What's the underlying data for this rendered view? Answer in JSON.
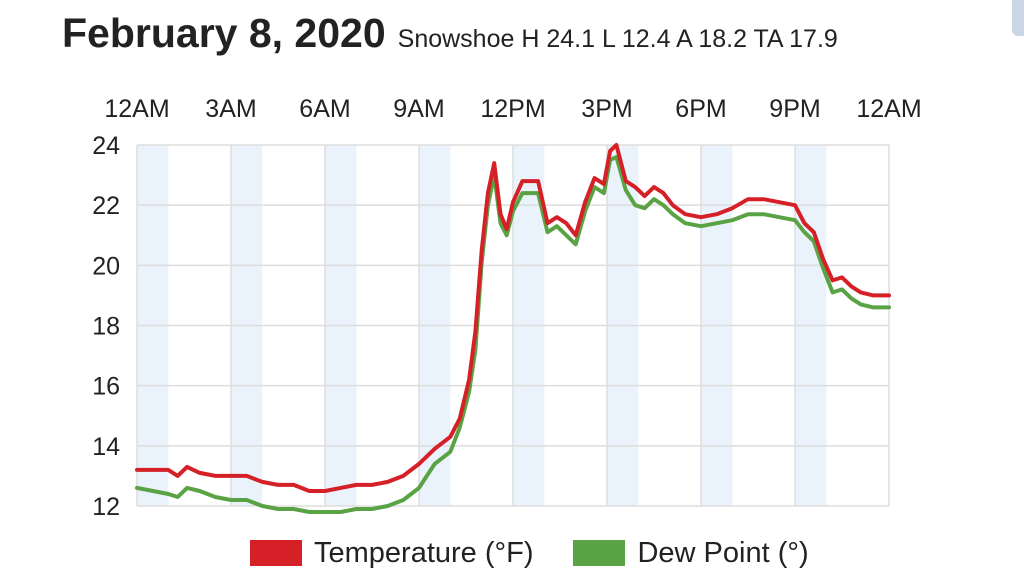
{
  "header": {
    "date": "February 8, 2020",
    "summary": "Snowshoe H 24.1 L 12.4 A 18.2 TA 17.9"
  },
  "colors": {
    "temperature": "#d62027",
    "dew_point": "#5aa345",
    "band": "#eaf3fb",
    "grid": "#dddddd"
  },
  "chart_data": {
    "type": "line",
    "xlabel": "",
    "ylabel": "",
    "x_unit": "hour",
    "xlim": [
      0,
      24
    ],
    "ylim": [
      12,
      24
    ],
    "y_ticks": [
      12,
      14,
      16,
      18,
      20,
      22,
      24
    ],
    "x_tick_labels": [
      "12AM",
      "3AM",
      "6AM",
      "9AM",
      "12PM",
      "3PM",
      "6PM",
      "9PM",
      "12AM"
    ],
    "grid": true,
    "legend_position": "bottom",
    "series": [
      {
        "name": "Temperature (°F)",
        "color": "#d62027",
        "points": [
          [
            0,
            13.2
          ],
          [
            1,
            13.2
          ],
          [
            1.3,
            13.0
          ],
          [
            1.6,
            13.3
          ],
          [
            2,
            13.1
          ],
          [
            2.5,
            13.0
          ],
          [
            3,
            13.0
          ],
          [
            3.5,
            13.0
          ],
          [
            4,
            12.8
          ],
          [
            4.5,
            12.7
          ],
          [
            5,
            12.7
          ],
          [
            5.5,
            12.5
          ],
          [
            6,
            12.5
          ],
          [
            6.5,
            12.6
          ],
          [
            7,
            12.7
          ],
          [
            7.5,
            12.7
          ],
          [
            8,
            12.8
          ],
          [
            8.5,
            13.0
          ],
          [
            9,
            13.4
          ],
          [
            9.5,
            13.9
          ],
          [
            10,
            14.3
          ],
          [
            10.3,
            14.9
          ],
          [
            10.6,
            16.2
          ],
          [
            10.8,
            17.8
          ],
          [
            11.0,
            20.5
          ],
          [
            11.2,
            22.4
          ],
          [
            11.4,
            23.4
          ],
          [
            11.6,
            21.7
          ],
          [
            11.8,
            21.2
          ],
          [
            12.0,
            22.1
          ],
          [
            12.3,
            22.8
          ],
          [
            12.8,
            22.8
          ],
          [
            13.1,
            21.4
          ],
          [
            13.4,
            21.6
          ],
          [
            13.7,
            21.4
          ],
          [
            14.0,
            21.0
          ],
          [
            14.3,
            22.1
          ],
          [
            14.6,
            22.9
          ],
          [
            14.9,
            22.7
          ],
          [
            15.1,
            23.8
          ],
          [
            15.3,
            24.0
          ],
          [
            15.6,
            22.8
          ],
          [
            15.9,
            22.6
          ],
          [
            16.2,
            22.3
          ],
          [
            16.5,
            22.6
          ],
          [
            16.8,
            22.4
          ],
          [
            17.1,
            22.0
          ],
          [
            17.5,
            21.7
          ],
          [
            18,
            21.6
          ],
          [
            18.5,
            21.7
          ],
          [
            19,
            21.9
          ],
          [
            19.5,
            22.2
          ],
          [
            20,
            22.2
          ],
          [
            20.5,
            22.1
          ],
          [
            21,
            22.0
          ],
          [
            21.3,
            21.4
          ],
          [
            21.6,
            21.1
          ],
          [
            21.9,
            20.2
          ],
          [
            22.2,
            19.5
          ],
          [
            22.5,
            19.6
          ],
          [
            22.8,
            19.3
          ],
          [
            23.1,
            19.1
          ],
          [
            23.5,
            19.0
          ],
          [
            24,
            19.0
          ]
        ]
      },
      {
        "name": "Dew Point (°)",
        "color": "#5aa345",
        "points": [
          [
            0,
            12.6
          ],
          [
            1,
            12.4
          ],
          [
            1.3,
            12.3
          ],
          [
            1.6,
            12.6
          ],
          [
            2,
            12.5
          ],
          [
            2.5,
            12.3
          ],
          [
            3,
            12.2
          ],
          [
            3.5,
            12.2
          ],
          [
            4,
            12.0
          ],
          [
            4.5,
            11.9
          ],
          [
            5,
            11.9
          ],
          [
            5.5,
            11.8
          ],
          [
            6,
            11.8
          ],
          [
            6.5,
            11.8
          ],
          [
            7,
            11.9
          ],
          [
            7.5,
            11.9
          ],
          [
            8,
            12.0
          ],
          [
            8.5,
            12.2
          ],
          [
            9,
            12.6
          ],
          [
            9.5,
            13.4
          ],
          [
            10,
            13.8
          ],
          [
            10.3,
            14.6
          ],
          [
            10.6,
            15.8
          ],
          [
            10.8,
            17.2
          ],
          [
            11.0,
            20.1
          ],
          [
            11.2,
            22.0
          ],
          [
            11.4,
            23.0
          ],
          [
            11.6,
            21.4
          ],
          [
            11.8,
            21.0
          ],
          [
            12.0,
            21.8
          ],
          [
            12.3,
            22.4
          ],
          [
            12.8,
            22.4
          ],
          [
            13.1,
            21.1
          ],
          [
            13.4,
            21.3
          ],
          [
            13.7,
            21.0
          ],
          [
            14.0,
            20.7
          ],
          [
            14.3,
            21.8
          ],
          [
            14.6,
            22.6
          ],
          [
            14.9,
            22.4
          ],
          [
            15.1,
            23.5
          ],
          [
            15.3,
            23.6
          ],
          [
            15.6,
            22.5
          ],
          [
            15.9,
            22.0
          ],
          [
            16.2,
            21.9
          ],
          [
            16.5,
            22.2
          ],
          [
            16.8,
            22.0
          ],
          [
            17.1,
            21.7
          ],
          [
            17.5,
            21.4
          ],
          [
            18,
            21.3
          ],
          [
            18.5,
            21.4
          ],
          [
            19,
            21.5
          ],
          [
            19.5,
            21.7
          ],
          [
            20,
            21.7
          ],
          [
            20.5,
            21.6
          ],
          [
            21,
            21.5
          ],
          [
            21.3,
            21.1
          ],
          [
            21.6,
            20.8
          ],
          [
            21.9,
            19.9
          ],
          [
            22.2,
            19.1
          ],
          [
            22.5,
            19.2
          ],
          [
            22.8,
            18.9
          ],
          [
            23.1,
            18.7
          ],
          [
            23.5,
            18.6
          ],
          [
            24,
            18.6
          ]
        ]
      }
    ]
  }
}
